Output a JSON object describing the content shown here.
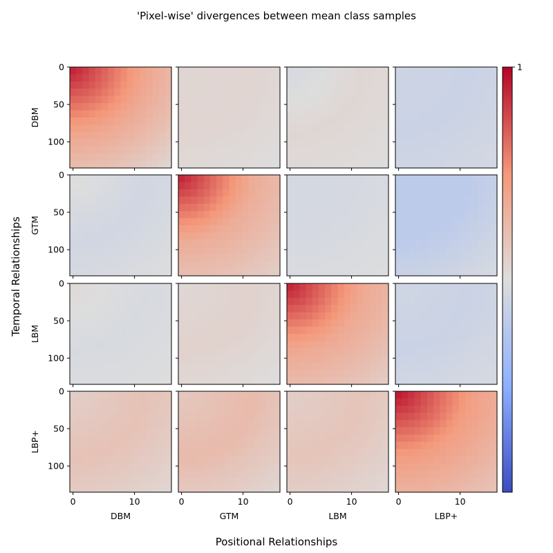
{
  "chart_data": {
    "type": "heatmap",
    "title": "'Pixel-wise' divergences between mean class samples",
    "xlabel": "Positional Relationships",
    "ylabel": "Temporal Relationships",
    "row_labels": [
      "DBM",
      "GTM",
      "LBM",
      "LBP+"
    ],
    "col_labels": [
      "DBM",
      "GTM",
      "LBM",
      "LBP+"
    ],
    "x_ticks": [
      0,
      10
    ],
    "y_ticks": [
      0,
      50,
      100
    ],
    "x_range": [
      0,
      16
    ],
    "y_range": [
      0,
      135
    ],
    "colormap": "coolwarm",
    "colorbar": {
      "max_label": "1",
      "range": [
        -1,
        1
      ]
    },
    "panels": [
      {
        "row": "DBM",
        "col": "DBM",
        "peak": 0.92,
        "corner": "top-left",
        "mid": 0.4,
        "far": 0.05
      },
      {
        "row": "DBM",
        "col": "GTM",
        "peak": 0.05,
        "corner": "top-left",
        "mid": 0.06,
        "far": 0.0
      },
      {
        "row": "DBM",
        "col": "LBM",
        "peak": -0.05,
        "corner": "top-left",
        "mid": 0.05,
        "far": 0.0
      },
      {
        "row": "DBM",
        "col": "LBP+",
        "peak": -0.1,
        "corner": "top-left",
        "mid": -0.12,
        "far": -0.06
      },
      {
        "row": "GTM",
        "col": "DBM",
        "peak": 0.02,
        "corner": "top-left",
        "mid": -0.08,
        "far": 0.0
      },
      {
        "row": "GTM",
        "col": "GTM",
        "peak": 0.92,
        "corner": "top-left",
        "mid": 0.35,
        "far": 0.1
      },
      {
        "row": "GTM",
        "col": "LBM",
        "peak": -0.06,
        "corner": "top-left",
        "mid": -0.05,
        "far": 0.0
      },
      {
        "row": "GTM",
        "col": "LBP+",
        "peak": -0.2,
        "corner": "top-left",
        "mid": -0.2,
        "far": -0.04
      },
      {
        "row": "LBM",
        "col": "DBM",
        "peak": 0.03,
        "corner": "top-left",
        "mid": -0.04,
        "far": 0.0
      },
      {
        "row": "LBM",
        "col": "GTM",
        "peak": 0.04,
        "corner": "top-left",
        "mid": 0.08,
        "far": 0.0
      },
      {
        "row": "LBM",
        "col": "LBM",
        "peak": 0.92,
        "corner": "top-left",
        "mid": 0.38,
        "far": 0.12
      },
      {
        "row": "LBM",
        "col": "LBP+",
        "peak": -0.08,
        "corner": "top-left",
        "mid": -0.12,
        "far": -0.04
      },
      {
        "row": "LBP+",
        "col": "DBM",
        "peak": 0.1,
        "corner": "top-left",
        "mid": 0.2,
        "far": 0.05
      },
      {
        "row": "LBP+",
        "col": "GTM",
        "peak": 0.15,
        "corner": "top-left",
        "mid": 0.25,
        "far": 0.05
      },
      {
        "row": "LBP+",
        "col": "LBM",
        "peak": 0.1,
        "corner": "top-left",
        "mid": 0.18,
        "far": 0.04
      },
      {
        "row": "LBP+",
        "col": "LBP+",
        "peak": 0.95,
        "corner": "top-left",
        "mid": 0.45,
        "far": 0.18
      }
    ]
  }
}
